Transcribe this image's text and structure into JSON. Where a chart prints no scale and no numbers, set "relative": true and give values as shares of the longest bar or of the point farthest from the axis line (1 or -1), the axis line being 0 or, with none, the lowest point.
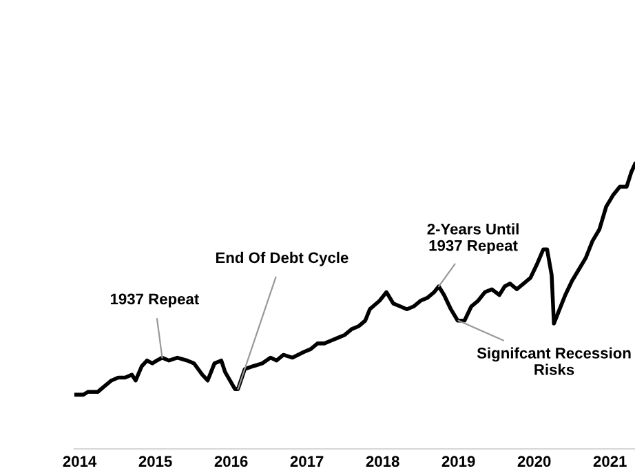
{
  "chart_data": {
    "type": "line",
    "relative": true,
    "x": [
      2013.95,
      2014.05,
      2014.11,
      2014.24,
      2014.33,
      2014.42,
      2014.51,
      2014.6,
      2014.69,
      2014.74,
      2014.82,
      2014.89,
      2014.96,
      2015.02,
      2015.09,
      2015.18,
      2015.29,
      2015.42,
      2015.51,
      2015.62,
      2015.69,
      2015.78,
      2015.87,
      2015.92,
      2016.05,
      2016.09,
      2016.18,
      2016.29,
      2016.41,
      2016.52,
      2016.6,
      2016.69,
      2016.81,
      2016.96,
      2017.05,
      2017.14,
      2017.23,
      2017.32,
      2017.41,
      2017.5,
      2017.59,
      2017.68,
      2017.77,
      2017.83,
      2017.96,
      2018.05,
      2018.14,
      2018.23,
      2018.32,
      2018.41,
      2018.5,
      2018.59,
      2018.68,
      2018.74,
      2018.81,
      2018.9,
      2018.99,
      2019.08,
      2019.17,
      2019.26,
      2019.35,
      2019.44,
      2019.54,
      2019.61,
      2019.68,
      2019.77,
      2019.86,
      2019.95,
      2020.04,
      2020.12,
      2020.17,
      2020.23,
      2020.26,
      2020.41,
      2020.5,
      2020.59,
      2020.68,
      2020.77,
      2020.86,
      2020.95,
      2021.04,
      2021.13,
      2021.22,
      2021.28,
      2021.33
    ],
    "series": [
      {
        "color": "#000000",
        "values": [
          0.19,
          0.19,
          0.2,
          0.2,
          0.22,
          0.24,
          0.25,
          0.25,
          0.26,
          0.24,
          0.29,
          0.31,
          0.3,
          0.31,
          0.32,
          0.31,
          0.32,
          0.31,
          0.3,
          0.26,
          0.24,
          0.3,
          0.31,
          0.27,
          0.21,
          0.21,
          0.28,
          0.29,
          0.3,
          0.32,
          0.31,
          0.33,
          0.32,
          0.34,
          0.35,
          0.37,
          0.37,
          0.38,
          0.39,
          0.4,
          0.42,
          0.43,
          0.45,
          0.49,
          0.52,
          0.55,
          0.51,
          0.5,
          0.49,
          0.5,
          0.52,
          0.53,
          0.55,
          0.57,
          0.54,
          0.49,
          0.45,
          0.45,
          0.5,
          0.52,
          0.55,
          0.56,
          0.54,
          0.57,
          0.58,
          0.56,
          0.58,
          0.6,
          0.65,
          0.7,
          0.7,
          0.61,
          0.44,
          0.54,
          0.59,
          0.63,
          0.67,
          0.73,
          0.77,
          0.85,
          0.89,
          0.92,
          0.92,
          0.97,
          1
        ]
      }
    ],
    "xlim": [
      2013.93,
      2021.33
    ],
    "xticks": [
      2014,
      2015,
      2016,
      2017,
      2018,
      2019,
      2020,
      2021
    ],
    "annotations": [
      {
        "text": "1937 Repeat",
        "x": 2015.09,
        "y": 0.32
      },
      {
        "text": "End Of Debt Cycle",
        "x": 2016.09,
        "y": 0.21
      },
      {
        "text": "2-Years Until\n1937 Repeat",
        "x": 2018.74,
        "y": 0.57
      },
      {
        "text": "Signifcant Recession\nRisks",
        "x": 2019.0,
        "y": 0.45
      }
    ]
  }
}
